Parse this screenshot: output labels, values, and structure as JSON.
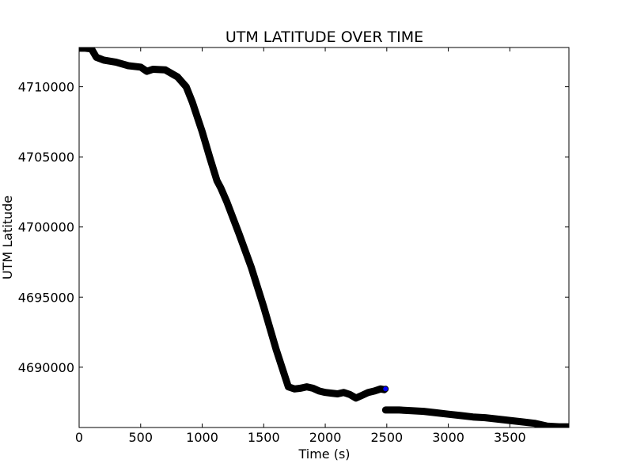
{
  "chart_data": {
    "type": "scatter",
    "title": "UTM LATITUDE OVER TIME",
    "xlabel": "Time (s)",
    "ylabel": "UTM Latitude",
    "xlim": [
      0,
      3980
    ],
    "ylim": [
      4685700,
      4712800
    ],
    "xticks": [
      0,
      500,
      1000,
      1500,
      2000,
      2500,
      3000,
      3500
    ],
    "yticks": [
      4690000,
      4695000,
      4700000,
      4705000,
      4710000
    ],
    "grid": false,
    "marker_color": "#000000",
    "highlight_color": "#0000ff",
    "series": [
      {
        "segments": [
          [
            [
              0,
              4712750
            ],
            [
              50,
              4712750
            ],
            [
              100,
              4712700
            ],
            [
              140,
              4712100
            ],
            [
              200,
              4711900
            ],
            [
              300,
              4711750
            ],
            [
              400,
              4711500
            ],
            [
              500,
              4711400
            ],
            [
              550,
              4711100
            ],
            [
              600,
              4711250
            ],
            [
              700,
              4711200
            ],
            [
              800,
              4710700
            ],
            [
              870,
              4710000
            ],
            [
              920,
              4708900
            ],
            [
              1000,
              4706800
            ],
            [
              1060,
              4705000
            ],
            [
              1120,
              4703300
            ],
            [
              1150,
              4702800
            ],
            [
              1200,
              4701800
            ],
            [
              1300,
              4699500
            ],
            [
              1400,
              4697100
            ],
            [
              1500,
              4694300
            ],
            [
              1600,
              4691300
            ],
            [
              1700,
              4688600
            ],
            [
              1750,
              4688450
            ],
            [
              1800,
              4688500
            ],
            [
              1850,
              4688600
            ],
            [
              1900,
              4688500
            ],
            [
              1950,
              4688300
            ],
            [
              2000,
              4688200
            ],
            [
              2050,
              4688150
            ],
            [
              2100,
              4688100
            ],
            [
              2150,
              4688200
            ],
            [
              2200,
              4688050
            ],
            [
              2250,
              4687800
            ],
            [
              2300,
              4688000
            ],
            [
              2350,
              4688200
            ],
            [
              2400,
              4688300
            ],
            [
              2450,
              4688450
            ],
            [
              2480,
              4688400
            ]
          ],
          [
            [
              2490,
              4686950
            ],
            [
              2600,
              4686950
            ],
            [
              2700,
              4686900
            ],
            [
              2800,
              4686850
            ],
            [
              2900,
              4686750
            ],
            [
              3000,
              4686650
            ],
            [
              3100,
              4686550
            ],
            [
              3200,
              4686450
            ],
            [
              3300,
              4686400
            ],
            [
              3400,
              4686300
            ],
            [
              3500,
              4686200
            ],
            [
              3600,
              4686100
            ],
            [
              3700,
              4686000
            ],
            [
              3800,
              4685800
            ],
            [
              3900,
              4685750
            ],
            [
              3980,
              4685750
            ]
          ]
        ],
        "highlight_point": [
          2490,
          4688450
        ]
      }
    ]
  }
}
